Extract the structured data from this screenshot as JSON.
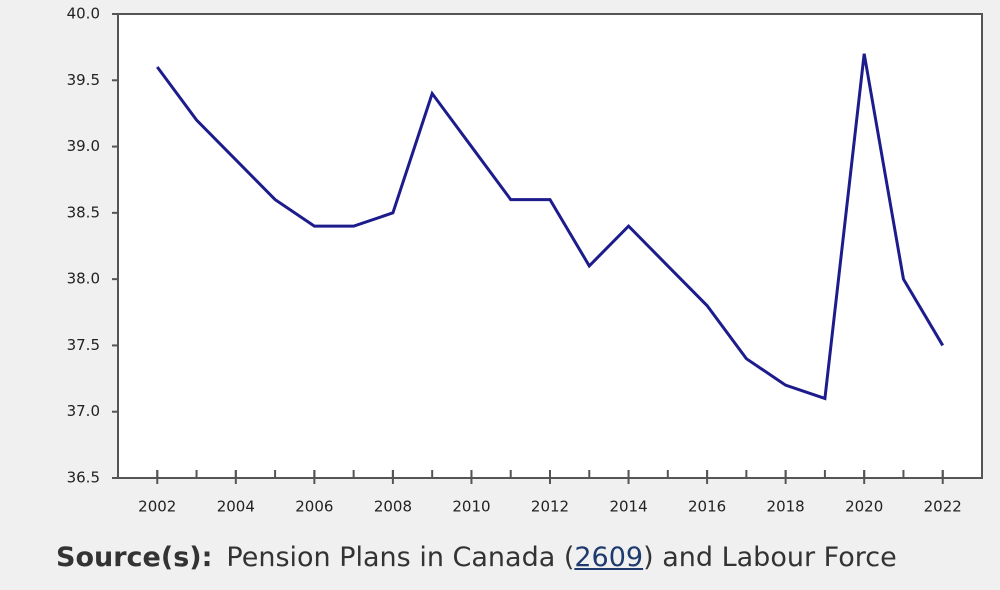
{
  "chart_data": {
    "type": "line",
    "x": [
      2002,
      2003,
      2004,
      2005,
      2006,
      2007,
      2008,
      2009,
      2010,
      2011,
      2012,
      2013,
      2014,
      2015,
      2016,
      2017,
      2018,
      2019,
      2020,
      2021,
      2022
    ],
    "series": [
      {
        "color": "#1c1c8c",
        "values": [
          39.6,
          39.2,
          38.9,
          38.6,
          38.4,
          38.4,
          38.5,
          39.4,
          39.0,
          38.6,
          38.6,
          38.1,
          38.4,
          38.1,
          37.8,
          37.4,
          37.2,
          37.1,
          39.7,
          38.0,
          37.5
        ]
      }
    ],
    "xlim": [
      2001,
      2023
    ],
    "xticks": [
      2002,
      2004,
      2006,
      2008,
      2010,
      2012,
      2014,
      2016,
      2018,
      2020,
      2022
    ],
    "ylim": [
      36.5,
      40
    ],
    "yticks": [
      {
        "value": 36.5,
        "label": "36.5"
      },
      {
        "value": 37,
        "label": "37.0"
      },
      37.5,
      {
        "value": 38,
        "label": "38.0"
      },
      38.5,
      {
        "value": 39,
        "label": "39.0"
      },
      39.5,
      {
        "value": 40,
        "label": "40.0"
      }
    ],
    "grid": false
  },
  "source": {
    "label": "Source(s):",
    "text_before": "Pension Plans in Canada (",
    "link": "2609",
    "text_after": ") and Labour Force"
  }
}
